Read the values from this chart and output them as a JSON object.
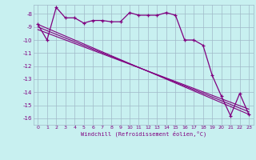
{
  "x": [
    0,
    1,
    2,
    3,
    4,
    5,
    6,
    7,
    8,
    9,
    10,
    11,
    12,
    13,
    14,
    15,
    16,
    17,
    18,
    19,
    20,
    21,
    22,
    23
  ],
  "y_main": [
    -8.8,
    -10.0,
    -7.5,
    -8.3,
    -8.3,
    -8.7,
    -8.5,
    -8.5,
    -8.6,
    -8.6,
    -7.9,
    -8.1,
    -8.1,
    -8.1,
    -7.9,
    -8.1,
    -10.0,
    -10.0,
    -10.4,
    -12.7,
    -14.3,
    -15.8,
    -14.1,
    -15.7
  ],
  "line_color": "#800080",
  "bg_color": "#c8f0f0",
  "grid_color": "#a0b8c8",
  "xlabel": "Windchill (Refroidissement éolien,°C)",
  "ylim": [
    -16.5,
    -7.3
  ],
  "xlim": [
    -0.5,
    23.5
  ],
  "yticks": [
    -8,
    -9,
    -10,
    -11,
    -12,
    -13,
    -14,
    -15,
    -16
  ],
  "xticks": [
    0,
    1,
    2,
    3,
    4,
    5,
    6,
    7,
    8,
    9,
    10,
    11,
    12,
    13,
    14,
    15,
    16,
    17,
    18,
    19,
    20,
    21,
    22,
    23
  ],
  "trend1_x": [
    0,
    23
  ],
  "trend1_y": [
    -8.8,
    -15.7
  ],
  "trend2_x": [
    0,
    23
  ],
  "trend2_y": [
    -9.0,
    -15.5
  ],
  "trend3_x": [
    0,
    23
  ],
  "trend3_y": [
    -9.2,
    -15.3
  ]
}
